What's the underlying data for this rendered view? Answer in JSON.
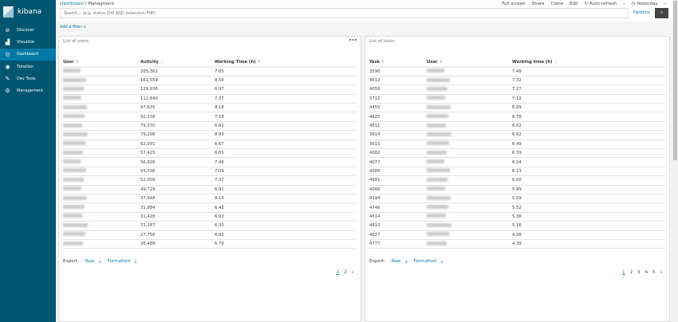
{
  "app": {
    "name": "kibana"
  },
  "sidebar": {
    "items": [
      {
        "label": "Discover",
        "icon": "compass-icon"
      },
      {
        "label": "Visualize",
        "icon": "bar-chart-icon"
      },
      {
        "label": "Dashboard",
        "icon": "dashboard-icon",
        "active": true
      },
      {
        "label": "Timelion",
        "icon": "timelion-icon"
      },
      {
        "label": "Dev Tools",
        "icon": "wrench-icon"
      },
      {
        "label": "Management",
        "icon": "gear-icon"
      }
    ]
  },
  "header": {
    "breadcrumb": [
      "Dashboard",
      "Managment"
    ],
    "menu": [
      "Full screen",
      "Share",
      "Clone",
      "Edit",
      "Auto-refresh"
    ],
    "time": "Yesterday",
    "search_placeholder": "Search... (e.g. status:200 AND extension:PHP)",
    "options": "Options",
    "add_filter": "Add a filter"
  },
  "users_panel": {
    "title": "List of users",
    "columns": [
      "User",
      "Activity",
      "Working Time (h)"
    ],
    "rows": [
      [
        "205,362",
        "7.65"
      ],
      [
        "161,559",
        "8.54"
      ],
      [
        "129,036",
        "6.97"
      ],
      [
        "112,840",
        "7.37"
      ],
      [
        "97,635",
        "8.18"
      ],
      [
        "92,338",
        "7.18"
      ],
      [
        "79,370",
        "6.62"
      ],
      [
        "79,206",
        "8.93"
      ],
      [
        "62,091",
        "6.67"
      ],
      [
        "57,425",
        "6.65"
      ],
      [
        "56,926",
        "7.49"
      ],
      [
        "55,336",
        "7.09"
      ],
      [
        "52,006",
        "7.37"
      ],
      [
        "49,729",
        "6.91"
      ],
      [
        "37,648",
        "8.14"
      ],
      [
        "31,884",
        "6.43"
      ],
      [
        "31,428",
        "6.93"
      ],
      [
        "31,287",
        "6.33"
      ],
      [
        "27,756",
        "6.82"
      ],
      [
        "26,488",
        "6.78"
      ]
    ],
    "export": "Export:",
    "raw": "Raw",
    "formatted": "Formatted",
    "pages": [
      "1",
      "2",
      "»"
    ]
  },
  "tasks_panel": {
    "title": "List of tasks",
    "columns": [
      "Task",
      "User",
      "Working time (h)"
    ],
    "rows": [
      [
        "3590",
        "7.49"
      ],
      [
        "3612",
        "7.32"
      ],
      [
        "4059",
        "7.27"
      ],
      [
        "3712",
        "7.12"
      ],
      [
        "4455",
        "6.89"
      ],
      [
        "4625",
        "6.78"
      ],
      [
        "4811",
        "6.62"
      ],
      [
        "3614",
        "6.62"
      ],
      [
        "3611",
        "6.49"
      ],
      [
        "4082",
        "6.39"
      ],
      [
        "4077",
        "6.24"
      ],
      [
        "4086",
        "6.13"
      ],
      [
        "4681",
        "6.00"
      ],
      [
        "4066",
        "5.99"
      ],
      [
        "4194",
        "5.59"
      ],
      [
        "4746",
        "5.52"
      ],
      [
        "4814",
        "5.36"
      ],
      [
        "4810",
        "5.16"
      ],
      [
        "4627",
        "4.98"
      ],
      [
        "4777",
        "4.39"
      ]
    ],
    "export": "Export:",
    "raw": "Raw",
    "formatted": "Formatted",
    "pages": [
      "1",
      "2",
      "3",
      "4",
      "5",
      "»"
    ]
  }
}
